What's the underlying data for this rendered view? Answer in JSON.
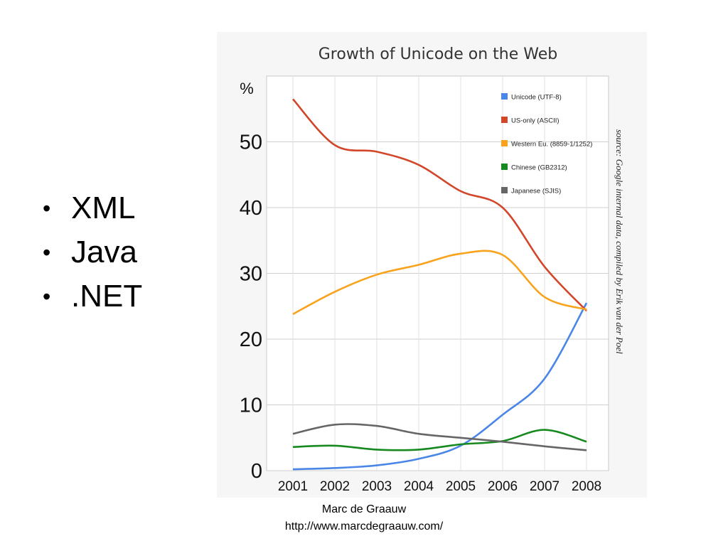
{
  "slide": {
    "bullets": [
      "XML",
      "Java",
      ".NET"
    ],
    "bullet_symbol": "•",
    "footer_name": "Marc de Graauw",
    "footer_url": "http://www.marcdegraauw.com/"
  },
  "chart_data": {
    "type": "line",
    "title": "Growth of Unicode on the Web",
    "ylabel": "%",
    "xlabel": "",
    "source_note": "source: Google internal data, compiled by Erik van der Poel",
    "x": [
      2001,
      2002,
      2003,
      2004,
      2005,
      2006,
      2007,
      2008
    ],
    "x_tick_labels": [
      "2001",
      "2002",
      "2003",
      "2004",
      "2005",
      "2006",
      "2007",
      "2008"
    ],
    "y_ticks": [
      0,
      10,
      20,
      30,
      40,
      50
    ],
    "ylim": [
      0,
      60
    ],
    "grid": true,
    "legend_position": "top-right",
    "series": [
      {
        "name": "Unicode (UTF-8)",
        "color": "#4a86e8",
        "values": [
          0.2,
          0.4,
          0.8,
          1.8,
          3.8,
          8.5,
          14,
          25.5
        ]
      },
      {
        "name": "US-only (ASCII)",
        "color": "#d2472a",
        "values": [
          56.5,
          49.5,
          48.5,
          46.5,
          42.5,
          40,
          31,
          24.3
        ]
      },
      {
        "name": "Western Eu. (8859-1/1252)",
        "color": "#f9a21b",
        "values": [
          23.8,
          27.2,
          29.8,
          31.3,
          33,
          32.8,
          26.4,
          24.5
        ]
      },
      {
        "name": "Chinese (GB2312)",
        "color": "#168a1e",
        "values": [
          3.6,
          3.8,
          3.2,
          3.2,
          4,
          4.5,
          6.2,
          4.4
        ]
      },
      {
        "name": "Japanese (SJIS)",
        "color": "#666666",
        "values": [
          5.6,
          7,
          6.8,
          5.6,
          5,
          4.4,
          3.7,
          3.1
        ]
      }
    ]
  }
}
